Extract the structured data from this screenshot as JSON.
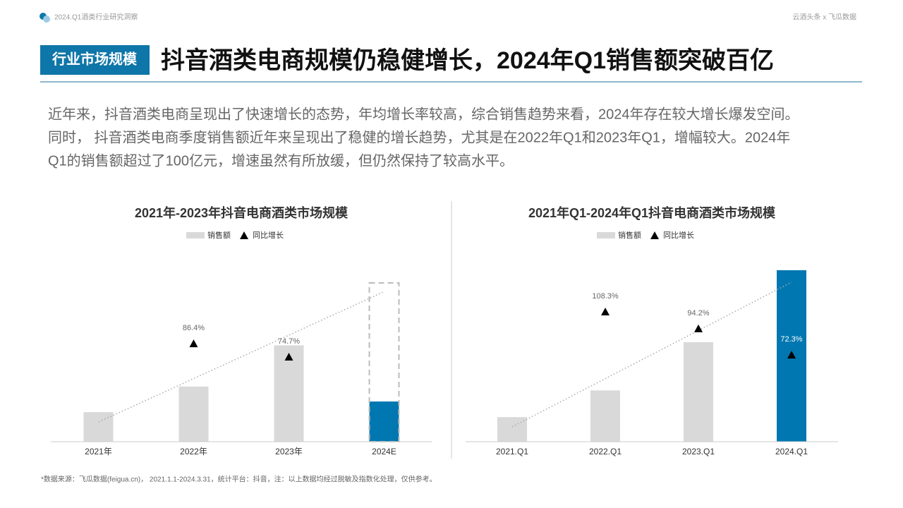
{
  "header": {
    "report": "2024.Q1酒类行业研究洞察",
    "source": "云酒头条 x 飞瓜数据",
    "tag": "行业市场规模",
    "title": "抖音酒类电商规模仍稳健增长，2024年Q1销售额突破百亿"
  },
  "paragraph": [
    "近年来，抖音酒类电商呈现出了快速增长的态势，年均增长率较高，综合销售趋势来看，2024年存在较大增长爆发空间。",
    "同时， 抖音酒类电商季度销售额近年来呈现出了稳健的增长趋势，尤其是在2022年Q1和2023年Q1，增幅较大。2024年",
    "Q1的销售额超过了100亿元，增速虽然有所放缓，但仍然保持了较高水平。"
  ],
  "footnote": "*数据来源：飞瓜数据(feigua.cn)， 2021.1.1-2024.3.31，统计平台：抖音，注：以上数据均经过脱敏及指数化处理，仅供参考。",
  "chart_data": [
    {
      "type": "bar",
      "title": "2021年-2023年抖音电商酒类市场规模",
      "categories": [
        "2021年",
        "2022年",
        "2023年",
        "2024E"
      ],
      "series": [
        {
          "name": "销售额",
          "colors": [
            "#d9d9d9",
            "#d9d9d9",
            "#d9d9d9",
            "#0077b0"
          ],
          "values": [
            75,
            140,
            244.6,
            102
          ],
          "estimate": [
            null,
            null,
            null,
            403
          ]
        },
        {
          "name": "同比增长",
          "axis": "y2",
          "color": "#000000",
          "values": [
            null,
            86.4,
            74.7,
            null
          ],
          "value_labels": [
            null,
            "86.4%",
            "74.7%",
            null
          ]
        }
      ],
      "ylim": [
        0,
        403
      ],
      "y2lim": [
        0,
        140
      ]
    },
    {
      "type": "bar",
      "title": "2021年Q1-2024年Q1抖音电商酒类市场规模",
      "categories": [
        "2021.Q1",
        "2022.Q1",
        "2023.Q1",
        "2024.Q1"
      ],
      "series": [
        {
          "name": "销售额",
          "colors": [
            "#d9d9d9",
            "#d9d9d9",
            "#d9d9d9",
            "#0077b0"
          ],
          "values": [
            14.6,
            30.5,
            59.2,
            102
          ]
        },
        {
          "name": "同比增长",
          "axis": "y2",
          "color": "#000000",
          "values": [
            null,
            108.3,
            94.2,
            72.3
          ],
          "value_labels": [
            null,
            "108.3%",
            "94.2%",
            "72.3%"
          ]
        }
      ],
      "ylim": [
        0,
        102
      ],
      "y2lim": [
        0,
        143
      ]
    }
  ]
}
